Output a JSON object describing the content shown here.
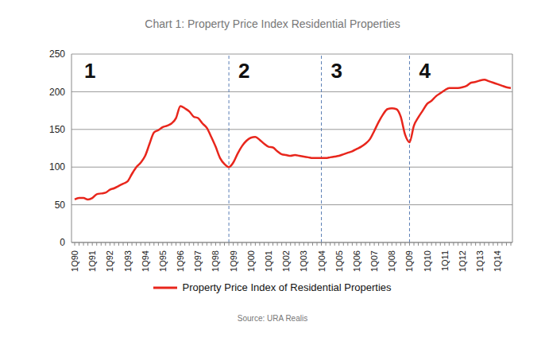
{
  "chart_data": {
    "type": "line",
    "title": "Chart 1: Property Price Index Residential Properties",
    "source": "Source: URA Realis",
    "categories": [
      "1Q90",
      null,
      null,
      null,
      "1Q91",
      null,
      null,
      null,
      "1Q92",
      null,
      null,
      null,
      "1Q93",
      null,
      null,
      null,
      "1Q94",
      null,
      null,
      null,
      "1Q95",
      null,
      null,
      null,
      "1Q96",
      null,
      null,
      null,
      "1Q97",
      null,
      null,
      null,
      "1Q98",
      null,
      null,
      null,
      "1Q99",
      null,
      null,
      null,
      "1Q00",
      null,
      null,
      null,
      "1Q01",
      null,
      null,
      null,
      "1Q02",
      null,
      null,
      null,
      "1Q03",
      null,
      null,
      null,
      "1Q04",
      null,
      null,
      null,
      "1Q05",
      null,
      null,
      null,
      "1Q06",
      null,
      null,
      null,
      "1Q07",
      null,
      null,
      null,
      "1Q08",
      null,
      null,
      null,
      "1Q09",
      null,
      null,
      null,
      "1Q10",
      null,
      null,
      null,
      "1Q11",
      null,
      null,
      null,
      "1Q12",
      null,
      null,
      null,
      "1Q13",
      null,
      null,
      null,
      "1Q14",
      null,
      null,
      null
    ],
    "series": [
      {
        "name": "Property Price Index of Residential Properties",
        "color": "#e8261c",
        "values": [
          57,
          59,
          59,
          57,
          59,
          64,
          65,
          66,
          70,
          72,
          75,
          78,
          81,
          91,
          100,
          106,
          115,
          131,
          146,
          149,
          153,
          155,
          158,
          165,
          181,
          178,
          174,
          167,
          165,
          158,
          152,
          140,
          127,
          112,
          104,
          100,
          106,
          118,
          128,
          135,
          139,
          140,
          136,
          131,
          127,
          126,
          121,
          117,
          116,
          115,
          116,
          115,
          114,
          113,
          112,
          112,
          112,
          112,
          113,
          114,
          115,
          117,
          119,
          121,
          124,
          127,
          131,
          137,
          148,
          160,
          170,
          177,
          178,
          177,
          167,
          143,
          133,
          155,
          166,
          175,
          184,
          188,
          194,
          198,
          202,
          205,
          205,
          205,
          206,
          208,
          212,
          213,
          215,
          216,
          214,
          212,
          210,
          208,
          206,
          205
        ]
      }
    ],
    "ylim": [
      0,
      250
    ],
    "yticks": [
      0,
      50,
      100,
      150,
      200,
      250
    ],
    "grid": true,
    "legend": "bottom",
    "sections": [
      {
        "label": "1",
        "start": 0
      },
      {
        "label": "2",
        "start": 35
      },
      {
        "label": "3",
        "start": 56
      },
      {
        "label": "4",
        "start": 76
      }
    ]
  }
}
